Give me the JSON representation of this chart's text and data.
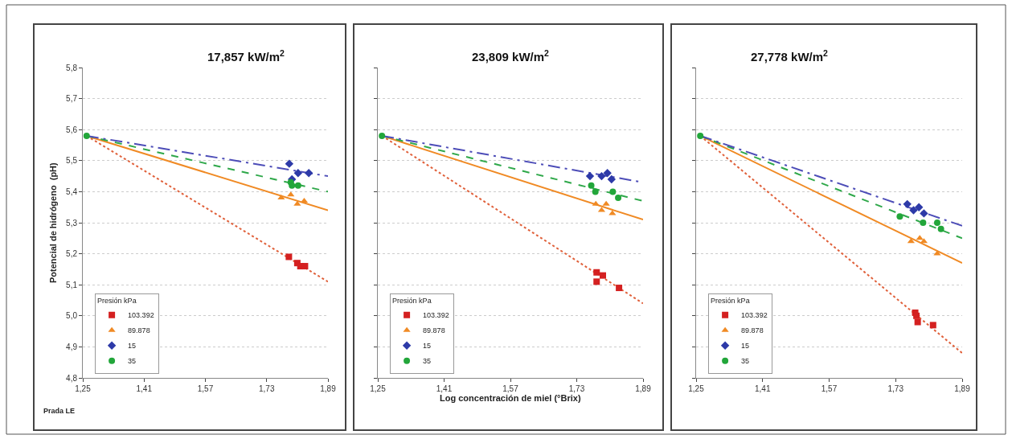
{
  "chart_data": [
    {
      "type": "scatter",
      "title": "17,857 kW/m$^{2}$",
      "ylabel": "Potencial de hidrógeno  (pH)",
      "legend_title": "Presión kPa",
      "legend": "bottom left",
      "grid": "y",
      "annotations": [
        "Prada LE"
      ],
      "xlim": [
        1.25,
        1.89
      ],
      "xticks": [
        {
          "value": 1.25,
          "label": "1,25"
        },
        {
          "value": 1.41,
          "label": "1,41"
        },
        {
          "value": 1.57,
          "label": "1,57"
        },
        {
          "value": 1.73,
          "label": "1,73"
        },
        {
          "value": 1.89,
          "label": "1,89"
        }
      ],
      "ylim": [
        4.8,
        5.8
      ],
      "yticks": [
        {
          "value": 4.8,
          "label": "4,8"
        },
        {
          "value": 4.9,
          "label": "4,9"
        },
        {
          "value": 5.0,
          "label": "5,0"
        },
        {
          "value": 5.1,
          "label": "5,1"
        },
        {
          "value": 5.2,
          "label": "5,2"
        },
        {
          "value": 5.3,
          "label": "5,3"
        },
        {
          "value": 5.4,
          "label": "5,4"
        },
        {
          "value": 5.5,
          "label": "5,5"
        },
        {
          "value": 5.6,
          "label": "5,6"
        },
        {
          "value": 5.7,
          "label": "5,7"
        },
        {
          "value": 5.8,
          "label": "5,8"
        }
      ],
      "series": [
        {
          "type": "line",
          "color": "#e0603a",
          "line_style": "dotted",
          "x": [
            1.26,
            1.89
          ],
          "values": [
            5.58,
            5.11
          ]
        },
        {
          "type": "line",
          "color": "#f08a24",
          "line_style": "solid",
          "x": [
            1.26,
            1.89
          ],
          "values": [
            5.58,
            5.34
          ]
        },
        {
          "type": "line",
          "color": "#2fa84a",
          "line_style": "dashed",
          "x": [
            1.26,
            1.89
          ],
          "values": [
            5.58,
            5.4
          ]
        },
        {
          "type": "line",
          "color": "#4d4db8",
          "line_style": "dashdot",
          "x": [
            1.26,
            1.89
          ],
          "values": [
            5.58,
            5.45
          ]
        },
        {
          "name": "103.392",
          "color": "#d42020",
          "marker": "square",
          "x": [
            1.788,
            1.81,
            1.818,
            1.83
          ],
          "values": [
            5.19,
            5.17,
            5.16,
            5.16
          ]
        },
        {
          "name": "89.878",
          "color": "#f08a24",
          "marker": "triangle",
          "x": [
            1.768,
            1.793,
            1.81,
            1.828
          ],
          "values": [
            5.38,
            5.39,
            5.36,
            5.37
          ]
        },
        {
          "name": "15",
          "color": "#2d3aa8",
          "marker": "diamond",
          "x": [
            1.789,
            1.796,
            1.812,
            1.84
          ],
          "values": [
            5.49,
            5.44,
            5.46,
            5.46
          ]
        },
        {
          "name": "35",
          "color": "#22a63a",
          "marker": "circle",
          "x": [
            1.26,
            1.793,
            1.796,
            1.812
          ],
          "values": [
            5.58,
            5.43,
            5.42,
            5.42
          ]
        }
      ]
    },
    {
      "type": "scatter",
      "title": "23,809 kW/m$^{2}$",
      "xlabel": "Log concentración de miel (°Brix)",
      "legend_title": "Presión kPa",
      "legend": "bottom left",
      "grid": "y",
      "tick_labels": "x",
      "xlim": [
        1.25,
        1.89
      ],
      "xticks": [
        {
          "value": 1.25,
          "label": "1,25"
        },
        {
          "value": 1.41,
          "label": "1,41"
        },
        {
          "value": 1.57,
          "label": "1,57"
        },
        {
          "value": 1.73,
          "label": "1,73"
        },
        {
          "value": 1.89,
          "label": "1,89"
        }
      ],
      "ylim": [
        4.8,
        5.8
      ],
      "yticks": [
        4.8,
        4.9,
        5.0,
        5.1,
        5.2,
        5.3,
        5.4,
        5.5,
        5.6,
        5.7,
        5.8
      ],
      "series": [
        {
          "type": "line",
          "color": "#e0603a",
          "line_style": "dotted",
          "x": [
            1.26,
            1.89
          ],
          "values": [
            5.58,
            5.04
          ]
        },
        {
          "type": "line",
          "color": "#f08a24",
          "line_style": "solid",
          "x": [
            1.26,
            1.89
          ],
          "values": [
            5.58,
            5.31
          ]
        },
        {
          "type": "line",
          "color": "#2fa84a",
          "line_style": "dashed",
          "x": [
            1.26,
            1.89
          ],
          "values": [
            5.58,
            5.37
          ]
        },
        {
          "type": "line",
          "color": "#4d4db8",
          "line_style": "dashdot",
          "x": [
            1.26,
            1.89
          ],
          "values": [
            5.58,
            5.43
          ]
        },
        {
          "name": "103.392",
          "color": "#d42020",
          "marker": "square",
          "x": [
            1.778,
            1.793,
            1.778,
            1.832
          ],
          "values": [
            5.14,
            5.13,
            5.11,
            5.09
          ]
        },
        {
          "name": "89.878",
          "color": "#f08a24",
          "marker": "triangle",
          "x": [
            1.776,
            1.79,
            1.801,
            1.816
          ],
          "values": [
            5.36,
            5.34,
            5.36,
            5.33
          ]
        },
        {
          "name": "15",
          "color": "#2d3aa8",
          "marker": "diamond",
          "x": [
            1.762,
            1.79,
            1.804,
            1.814
          ],
          "values": [
            5.45,
            5.45,
            5.46,
            5.44
          ]
        },
        {
          "name": "35",
          "color": "#22a63a",
          "marker": "circle",
          "x": [
            1.26,
            1.765,
            1.775,
            1.817,
            1.83
          ],
          "values": [
            5.58,
            5.42,
            5.4,
            5.4,
            5.38
          ]
        }
      ]
    },
    {
      "type": "scatter",
      "title": "27,778 kW/m$^{2}$",
      "legend_title": "Presión kPa",
      "legend": "bottom left",
      "grid": "y",
      "tick_labels": "x",
      "xlim": [
        1.25,
        1.89
      ],
      "xticks": [
        {
          "value": 1.25,
          "label": "1,25"
        },
        {
          "value": 1.41,
          "label": "1,41"
        },
        {
          "value": 1.57,
          "label": "1,57"
        },
        {
          "value": 1.73,
          "label": "1,73"
        },
        {
          "value": 1.89,
          "label": "1,89"
        }
      ],
      "ylim": [
        4.8,
        5.8
      ],
      "yticks": [
        4.8,
        4.9,
        5.0,
        5.1,
        5.2,
        5.3,
        5.4,
        5.5,
        5.6,
        5.7,
        5.8
      ],
      "series": [
        {
          "type": "line",
          "color": "#e0603a",
          "line_style": "dotted",
          "x": [
            1.26,
            1.89
          ],
          "values": [
            5.58,
            4.88
          ]
        },
        {
          "type": "line",
          "color": "#f08a24",
          "line_style": "solid",
          "x": [
            1.26,
            1.89
          ],
          "values": [
            5.58,
            5.17
          ]
        },
        {
          "type": "line",
          "color": "#2fa84a",
          "line_style": "dashed",
          "x": [
            1.26,
            1.89
          ],
          "values": [
            5.58,
            5.25
          ]
        },
        {
          "type": "line",
          "color": "#4d4db8",
          "line_style": "dashdot",
          "x": [
            1.26,
            1.89
          ],
          "values": [
            5.58,
            5.29
          ]
        },
        {
          "name": "103.392",
          "color": "#d42020",
          "marker": "square",
          "x": [
            1.777,
            1.78,
            1.783,
            1.82
          ],
          "values": [
            5.01,
            5.0,
            4.98,
            4.97
          ]
        },
        {
          "name": "89.878",
          "color": "#f08a24",
          "marker": "triangle",
          "x": [
            1.767,
            1.788,
            1.798,
            1.83
          ],
          "values": [
            5.24,
            5.25,
            5.24,
            5.2
          ]
        },
        {
          "name": "15",
          "color": "#2d3aa8",
          "marker": "diamond",
          "x": [
            1.758,
            1.773,
            1.786,
            1.798
          ],
          "values": [
            5.36,
            5.34,
            5.35,
            5.33
          ]
        },
        {
          "name": "35",
          "color": "#22a63a",
          "marker": "circle",
          "x": [
            1.26,
            1.74,
            1.796,
            1.83,
            1.839
          ],
          "values": [
            5.58,
            5.32,
            5.3,
            5.3,
            5.28
          ]
        }
      ]
    }
  ]
}
